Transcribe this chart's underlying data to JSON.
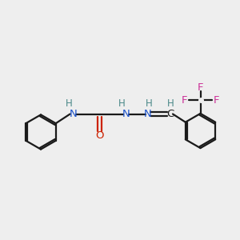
{
  "background_color": "#eeeeee",
  "bond_color": "#1a1a1a",
  "N_color": "#1a52cc",
  "O_color": "#cc2200",
  "F_color": "#cc3399",
  "H_color": "#4a8888",
  "figsize": [
    3.0,
    3.0
  ],
  "dpi": 100,
  "xlim": [
    0,
    10
  ],
  "ylim": [
    0,
    10
  ]
}
